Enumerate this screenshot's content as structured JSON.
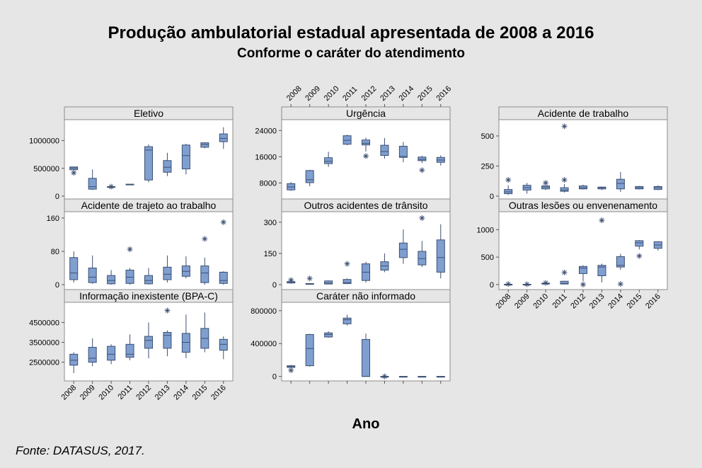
{
  "header": {
    "title": "Produção ambulatorial estadual apresentada de 2008 a 2016",
    "subtitle": "Conforme o caráter do atendimento"
  },
  "xlabel": "Ano",
  "source": "Fonte: DATASUS, 2017.",
  "chart_data": [
    {
      "type": "boxplot",
      "title": "Eletivo",
      "categories": [
        "2008",
        "2009",
        "2010",
        "2011",
        "2012",
        "2013",
        "2014",
        "2015",
        "2016"
      ],
      "ylim": [
        0,
        1300000
      ],
      "yticks": [
        0,
        500000,
        1000000
      ],
      "ytick_labels": [
        "0",
        "500000",
        "1000000"
      ],
      "boxes": [
        {
          "min": 455000,
          "q1": 475000,
          "median": 505000,
          "q3": 525000,
          "max": 530000,
          "outliers": [
            420000
          ]
        },
        {
          "min": 110000,
          "q1": 125000,
          "median": 170000,
          "q3": 320000,
          "max": 480000,
          "outliers": []
        },
        {
          "min": 170000,
          "q1": 170000,
          "median": 170000,
          "q3": 170000,
          "max": 170000,
          "outliers": [
            170000
          ]
        },
        {
          "min": 205000,
          "q1": 205000,
          "median": 210000,
          "q3": 215000,
          "max": 215000,
          "outliers": []
        },
        {
          "min": 250000,
          "q1": 290000,
          "median": 830000,
          "q3": 890000,
          "max": 930000,
          "outliers": []
        },
        {
          "min": 360000,
          "q1": 430000,
          "median": 520000,
          "q3": 640000,
          "max": 780000,
          "outliers": []
        },
        {
          "min": 390000,
          "q1": 490000,
          "median": 730000,
          "q3": 920000,
          "max": 940000,
          "outliers": []
        },
        {
          "min": 860000,
          "q1": 880000,
          "median": 930000,
          "q3": 960000,
          "max": 970000,
          "outliers": []
        },
        {
          "min": 850000,
          "q1": 980000,
          "median": 1040000,
          "q3": 1120000,
          "max": 1240000,
          "outliers": []
        }
      ]
    },
    {
      "type": "boxplot",
      "title": "Urgência",
      "categories": [
        "2008",
        "2009",
        "2010",
        "2011",
        "2012",
        "2013",
        "2014",
        "2015",
        "2016"
      ],
      "ylim": [
        4000,
        26000
      ],
      "yticks": [
        8000,
        16000,
        24000
      ],
      "ytick_labels": [
        "8000",
        "16000",
        "24000"
      ],
      "boxes": [
        {
          "min": 5600,
          "q1": 5900,
          "median": 6800,
          "q3": 7800,
          "max": 8300,
          "outliers": []
        },
        {
          "min": 7000,
          "q1": 8100,
          "median": 9000,
          "q3": 11800,
          "max": 12000,
          "outliers": []
        },
        {
          "min": 12900,
          "q1": 13900,
          "median": 14600,
          "q3": 15700,
          "max": 17500,
          "outliers": []
        },
        {
          "min": 19500,
          "q1": 19800,
          "median": 21000,
          "q3": 22400,
          "max": 22700,
          "outliers": []
        },
        {
          "min": 17600,
          "q1": 19600,
          "median": 20100,
          "q3": 21100,
          "max": 21800,
          "outliers": [
            16200
          ]
        },
        {
          "min": 15400,
          "q1": 16400,
          "median": 17600,
          "q3": 19500,
          "max": 21700,
          "outliers": []
        },
        {
          "min": 14300,
          "q1": 15800,
          "median": 16100,
          "q3": 19200,
          "max": 20500,
          "outliers": []
        },
        {
          "min": 14100,
          "q1": 14800,
          "median": 15200,
          "q3": 15900,
          "max": 16300,
          "outliers": [
            11900
          ]
        },
        {
          "min": 13300,
          "q1": 14300,
          "median": 15000,
          "q3": 15800,
          "max": 16400,
          "outliers": []
        }
      ]
    },
    {
      "type": "boxplot",
      "title": "Acidente de trabalho",
      "categories": [
        "2008",
        "2009",
        "2010",
        "2011",
        "2012",
        "2013",
        "2014",
        "2015",
        "2016"
      ],
      "ylim": [
        0,
        600
      ],
      "yticks": [
        0,
        250,
        500
      ],
      "ytick_labels": [
        "0",
        "250",
        "500"
      ],
      "boxes": [
        {
          "min": 10,
          "q1": 20,
          "median": 35,
          "q3": 55,
          "max": 90,
          "outliers": [
            135
          ]
        },
        {
          "min": 20,
          "q1": 50,
          "median": 70,
          "q3": 90,
          "max": 110,
          "outliers": []
        },
        {
          "min": 50,
          "q1": 60,
          "median": 75,
          "q3": 85,
          "max": 90,
          "outliers": [
            110
          ]
        },
        {
          "min": 30,
          "q1": 40,
          "median": 50,
          "q3": 70,
          "max": 100,
          "outliers": [
            135,
            580
          ]
        },
        {
          "min": 55,
          "q1": 60,
          "median": 70,
          "q3": 85,
          "max": 95,
          "outliers": []
        },
        {
          "min": 50,
          "q1": 60,
          "median": 70,
          "q3": 75,
          "max": 80,
          "outliers": []
        },
        {
          "min": 35,
          "q1": 60,
          "median": 105,
          "q3": 140,
          "max": 200,
          "outliers": []
        },
        {
          "min": 55,
          "q1": 60,
          "median": 70,
          "q3": 80,
          "max": 85,
          "outliers": []
        },
        {
          "min": 50,
          "q1": 55,
          "median": 70,
          "q3": 80,
          "max": 90,
          "outliers": []
        }
      ]
    },
    {
      "type": "boxplot",
      "title": "Acidente de trajeto ao trabalho",
      "categories": [
        "2008",
        "2009",
        "2010",
        "2011",
        "2012",
        "2013",
        "2014",
        "2015",
        "2016"
      ],
      "ylim": [
        -5,
        165
      ],
      "yticks": [
        0,
        80,
        160
      ],
      "ytick_labels": [
        "0",
        "80",
        "160"
      ],
      "boxes": [
        {
          "min": 5,
          "q1": 12,
          "median": 28,
          "q3": 65,
          "max": 80,
          "outliers": []
        },
        {
          "min": 2,
          "q1": 5,
          "median": 18,
          "q3": 40,
          "max": 70,
          "outliers": []
        },
        {
          "min": 0,
          "q1": 2,
          "median": 10,
          "q3": 22,
          "max": 35,
          "outliers": []
        },
        {
          "min": 0,
          "q1": 3,
          "median": 18,
          "q3": 35,
          "max": 40,
          "outliers": [
            85
          ]
        },
        {
          "min": 0,
          "q1": 2,
          "median": 10,
          "q3": 22,
          "max": 40,
          "outliers": []
        },
        {
          "min": 5,
          "q1": 12,
          "median": 25,
          "q3": 42,
          "max": 70,
          "outliers": []
        },
        {
          "min": 15,
          "q1": 20,
          "median": 32,
          "q3": 45,
          "max": 68,
          "outliers": []
        },
        {
          "min": 0,
          "q1": 5,
          "median": 28,
          "q3": 45,
          "max": 65,
          "outliers": [
            110
          ]
        },
        {
          "min": 0,
          "q1": 3,
          "median": 10,
          "q3": 30,
          "max": 32,
          "outliers": [
            150
          ]
        }
      ]
    },
    {
      "type": "boxplot",
      "title": "Outros acidentes de trânsito",
      "categories": [
        "2008",
        "2009",
        "2010",
        "2011",
        "2012",
        "2013",
        "2014",
        "2015",
        "2016"
      ],
      "ylim": [
        -10,
        330
      ],
      "yticks": [
        0,
        150,
        300
      ],
      "ytick_labels": [
        "0",
        "150",
        "300"
      ],
      "boxes": [
        {
          "min": 5,
          "q1": 8,
          "median": 10,
          "q3": 15,
          "max": 20,
          "outliers": [
            22
          ]
        },
        {
          "min": 5,
          "q1": 5,
          "median": 5,
          "q3": 5,
          "max": 5,
          "outliers": [
            30
          ]
        },
        {
          "min": 2,
          "q1": 3,
          "median": 8,
          "q3": 18,
          "max": 20,
          "outliers": []
        },
        {
          "min": 3,
          "q1": 5,
          "median": 10,
          "q3": 25,
          "max": 30,
          "outliers": [
            100
          ]
        },
        {
          "min": 10,
          "q1": 20,
          "median": 60,
          "q3": 100,
          "max": 110,
          "outliers": []
        },
        {
          "min": 60,
          "q1": 70,
          "median": 90,
          "q3": 110,
          "max": 150,
          "outliers": []
        },
        {
          "min": 100,
          "q1": 130,
          "median": 170,
          "q3": 200,
          "max": 265,
          "outliers": []
        },
        {
          "min": 85,
          "q1": 95,
          "median": 125,
          "q3": 160,
          "max": 210,
          "outliers": [
            320
          ]
        },
        {
          "min": 30,
          "q1": 60,
          "median": 130,
          "q3": 215,
          "max": 290,
          "outliers": []
        }
      ]
    },
    {
      "type": "boxplot",
      "title": "Outras lesões ou envenenamento",
      "categories": [
        "2008",
        "2009",
        "2010",
        "2011",
        "2012",
        "2013",
        "2014",
        "2015",
        "2016"
      ],
      "ylim": [
        -40,
        1250
      ],
      "yticks": [
        0,
        500,
        1000
      ],
      "ytick_labels": [
        "0",
        "500",
        "1000"
      ],
      "boxes": [
        {
          "min": 0,
          "q1": 0,
          "median": 0,
          "q3": 5,
          "max": 5,
          "outliers": [
            10
          ]
        },
        {
          "min": 0,
          "q1": 0,
          "median": 0,
          "q3": 5,
          "max": 5,
          "outliers": [
            5
          ]
        },
        {
          "min": 5,
          "q1": 10,
          "median": 15,
          "q3": 25,
          "max": 30,
          "outliers": [
            30
          ]
        },
        {
          "min": 5,
          "q1": 10,
          "median": 20,
          "q3": 60,
          "max": 70,
          "outliers": [
            220
          ]
        },
        {
          "min": 60,
          "q1": 200,
          "median": 300,
          "q3": 330,
          "max": 350,
          "outliers": [
            0
          ]
        },
        {
          "min": 40,
          "q1": 160,
          "median": 320,
          "q3": 350,
          "max": 380,
          "outliers": [
            1170
          ]
        },
        {
          "min": 270,
          "q1": 320,
          "median": 350,
          "q3": 510,
          "max": 560,
          "outliers": [
            10
          ]
        },
        {
          "min": 640,
          "q1": 700,
          "median": 760,
          "q3": 800,
          "max": 810,
          "outliers": [
            520
          ]
        },
        {
          "min": 620,
          "q1": 660,
          "median": 720,
          "q3": 780,
          "max": 790,
          "outliers": []
        }
      ]
    },
    {
      "type": "boxplot",
      "title": "Informação inexistente  (BPA-C)",
      "categories": [
        "2008",
        "2009",
        "2010",
        "2011",
        "2012",
        "2013",
        "2014",
        "2015",
        "2016"
      ],
      "ylim": [
        1700000,
        5300000
      ],
      "yticks": [
        2500000,
        3500000,
        4500000
      ],
      "ytick_labels": [
        "2500000",
        "3500000",
        "4500000"
      ],
      "boxes": [
        {
          "min": 1950000,
          "q1": 2350000,
          "median": 2600000,
          "q3": 2900000,
          "max": 3000000,
          "outliers": []
        },
        {
          "min": 2300000,
          "q1": 2500000,
          "median": 2700000,
          "q3": 3250000,
          "max": 3700000,
          "outliers": []
        },
        {
          "min": 2400000,
          "q1": 2600000,
          "median": 2900000,
          "q3": 3300000,
          "max": 3400000,
          "outliers": []
        },
        {
          "min": 2600000,
          "q1": 2750000,
          "median": 2900000,
          "q3": 3400000,
          "max": 3900000,
          "outliers": []
        },
        {
          "min": 2700000,
          "q1": 3200000,
          "median": 3600000,
          "q3": 3800000,
          "max": 4500000,
          "outliers": []
        },
        {
          "min": 2800000,
          "q1": 3200000,
          "median": 3850000,
          "q3": 4000000,
          "max": 4100000,
          "outliers": [
            5100000
          ]
        },
        {
          "min": 2700000,
          "q1": 3000000,
          "median": 3500000,
          "q3": 3950000,
          "max": 4900000,
          "outliers": []
        },
        {
          "min": 3000000,
          "q1": 3200000,
          "median": 3700000,
          "q3": 4200000,
          "max": 5000000,
          "outliers": []
        },
        {
          "min": 2650000,
          "q1": 3100000,
          "median": 3400000,
          "q3": 3650000,
          "max": 3800000,
          "outliers": []
        }
      ]
    },
    {
      "type": "boxplot",
      "title": "Caráter não informado",
      "categories": [
        "2008",
        "2009",
        "2010",
        "2011",
        "2012",
        "2013",
        "2014",
        "2015",
        "2016"
      ],
      "ylim": [
        -20000,
        850000
      ],
      "yticks": [
        0,
        400000,
        800000
      ],
      "ytick_labels": [
        "0",
        "400000",
        "800000"
      ],
      "boxes": [
        {
          "min": 100000,
          "q1": 110000,
          "median": 120000,
          "q3": 130000,
          "max": 140000,
          "outliers": [
            75000
          ]
        },
        {
          "min": 120000,
          "q1": 130000,
          "median": 340000,
          "q3": 510000,
          "max": 520000,
          "outliers": []
        },
        {
          "min": 470000,
          "q1": 480000,
          "median": 510000,
          "q3": 530000,
          "max": 550000,
          "outliers": []
        },
        {
          "min": 620000,
          "q1": 640000,
          "median": 690000,
          "q3": 710000,
          "max": 750000,
          "outliers": []
        },
        {
          "min": 0,
          "q1": 0,
          "median": 0,
          "q3": 450000,
          "max": 520000,
          "outliers": []
        },
        {
          "min": 0,
          "q1": 0,
          "median": 0,
          "q3": 0,
          "max": 0,
          "outliers": [
            0
          ]
        },
        {
          "min": 0,
          "q1": 0,
          "median": 0,
          "q3": 0,
          "max": 0,
          "outliers": []
        },
        {
          "min": 0,
          "q1": 0,
          "median": 0,
          "q3": 0,
          "max": 0,
          "outliers": []
        },
        {
          "min": 0,
          "q1": 0,
          "median": 0,
          "q3": 0,
          "max": 0,
          "outliers": []
        }
      ]
    }
  ]
}
